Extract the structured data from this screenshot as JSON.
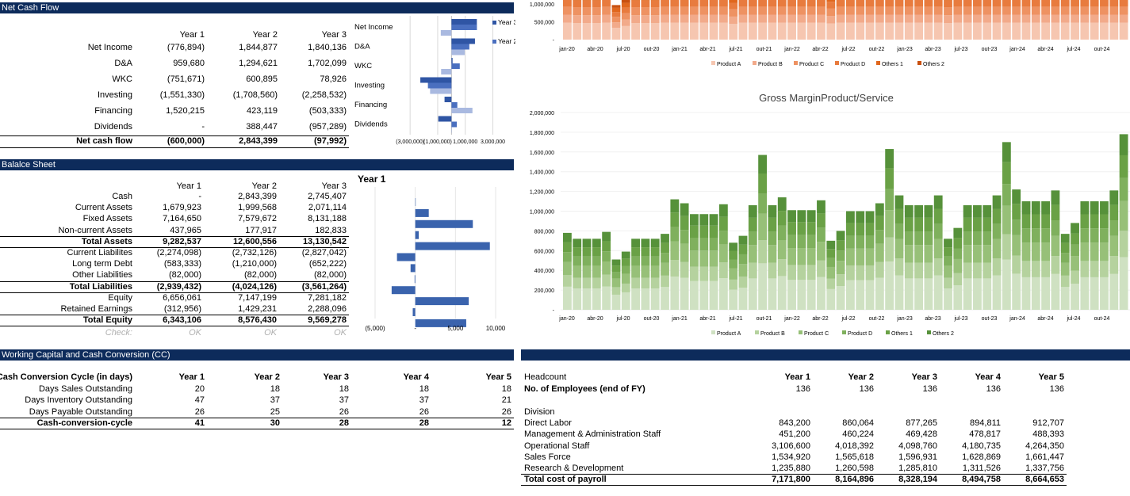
{
  "cashflow": {
    "header": "Net Cash Flow",
    "years": [
      "Year 1",
      "Year 2",
      "Year 3"
    ],
    "rows": [
      {
        "label": "Net Income",
        "vals": [
          "(776,894)",
          "1,844,877",
          "1,840,136"
        ]
      },
      {
        "label": "D&A",
        "vals": [
          "959,680",
          "1,294,621",
          "1,702,099"
        ]
      },
      {
        "label": "WKC",
        "vals": [
          "(751,671)",
          "600,895",
          "78,926"
        ]
      },
      {
        "label": "Investing",
        "vals": [
          "(1,551,330)",
          "(1,708,560)",
          "(2,258,532)"
        ]
      },
      {
        "label": "Financing",
        "vals": [
          "1,520,215",
          "423,119",
          "(503,333)"
        ]
      },
      {
        "label": "Dividends",
        "vals": [
          "-",
          "388,447",
          "(957,289)"
        ]
      }
    ],
    "total": {
      "label": "Net cash flow",
      "vals": [
        "(600,000)",
        "2,843,399",
        "(97,992)"
      ]
    }
  },
  "cf_chart": {
    "categories": [
      "Net Income",
      "D&A",
      "WKC",
      "Investing",
      "Financing",
      "Dividends"
    ],
    "legend": [
      "Year 3",
      "Year 2"
    ],
    "ticks": [
      "(3,000,000)",
      "(1,000,000)",
      "1,000,000",
      "3,000,000"
    ],
    "colors": {
      "y1": "#a9b9e0",
      "y2": "#4a6fbf",
      "y3": "#2f55a4"
    },
    "series": [
      {
        "name": "Year 1",
        "values": [
          -776894,
          959680,
          -751671,
          -1551330,
          1520215,
          0
        ]
      },
      {
        "name": "Year 2",
        "values": [
          1844877,
          1294621,
          600895,
          -1708560,
          423119,
          388447
        ]
      },
      {
        "name": "Year 3",
        "values": [
          1840136,
          1702099,
          78926,
          -2258532,
          -503333,
          -957289
        ]
      }
    ]
  },
  "balance": {
    "header": "Balalce Sheet",
    "years": [
      "Year 1",
      "Year 2",
      "Year 3"
    ],
    "rows": [
      {
        "label": "Cash",
        "vals": [
          "-",
          "2,843,399",
          "2,745,407"
        ],
        "bold": false
      },
      {
        "label": "Current Assets",
        "vals": [
          "1,679,923",
          "1,999,568",
          "2,071,114"
        ],
        "bold": false
      },
      {
        "label": "Fixed Assets",
        "vals": [
          "7,164,650",
          "7,579,672",
          "8,131,188"
        ],
        "bold": false
      },
      {
        "label": "Non-current Assets",
        "vals": [
          "437,965",
          "177,917",
          "182,833"
        ],
        "bold": false
      },
      {
        "label": "Total Assets",
        "vals": [
          "9,282,537",
          "12,600,556",
          "13,130,542"
        ],
        "bold": true
      },
      {
        "label": "Current Liabilites",
        "vals": [
          "(2,274,098)",
          "(2,732,126)",
          "(2,827,042)"
        ],
        "bold": false
      },
      {
        "label": "Long term Debt",
        "vals": [
          "(583,333)",
          "(1,210,000)",
          "(652,222)"
        ],
        "bold": false
      },
      {
        "label": "Other  Liabilities",
        "vals": [
          "(82,000)",
          "(82,000)",
          "(82,000)"
        ],
        "bold": false
      },
      {
        "label": "Total Liabilities",
        "vals": [
          "(2,939,432)",
          "(4,024,126)",
          "(3,561,264)"
        ],
        "bold": true
      },
      {
        "label": "Equity",
        "vals": [
          "6,656,061",
          "7,147,199",
          "7,281,182"
        ],
        "bold": false
      },
      {
        "label": "Retained Earnings",
        "vals": [
          "(312,956)",
          "1,429,231",
          "2,288,096"
        ],
        "bold": false
      },
      {
        "label": "Total Equity",
        "vals": [
          "6,343,106",
          "8,576,430",
          "9,569,278"
        ],
        "bold": true
      }
    ],
    "check": {
      "label": "Check:",
      "vals": [
        "OK",
        "OK",
        "OK"
      ]
    }
  },
  "bs_chart": {
    "title": "Year 1",
    "ticks": [
      "(5,000)",
      "-",
      "5,000",
      "10,000"
    ],
    "values": [
      0,
      1680,
      7165,
      438,
      9283,
      -2274,
      -583,
      -82,
      -2939,
      6656,
      -313,
      6343
    ]
  },
  "wc": {
    "header": "Working Capital and Cash Conversion (CC)",
    "title": "Cash Conversion Cycle (in days)",
    "years": [
      "Year 1",
      "Year 2",
      "Year 3",
      "Year 4",
      "Year 5"
    ],
    "rows": [
      {
        "label": "Days Sales Outstanding",
        "vals": [
          "20",
          "18",
          "18",
          "18",
          "18"
        ]
      },
      {
        "label": "Days Inventory Outstanding",
        "vals": [
          "47",
          "37",
          "37",
          "37",
          "21"
        ]
      },
      {
        "label": "Days Payable Outstanding",
        "vals": [
          "26",
          "25",
          "26",
          "26",
          "26"
        ]
      }
    ],
    "total": {
      "label": "Cash-conversion-cycle",
      "vals": [
        "41",
        "30",
        "28",
        "28",
        "12"
      ]
    }
  },
  "headcount": {
    "title": "Headcount",
    "years": [
      "Year 1",
      "Year 2",
      "Year 3",
      "Year 4",
      "Year 5"
    ],
    "employees": {
      "label": "No. of Employees (end of FY)",
      "vals": [
        "136",
        "136",
        "136",
        "136",
        "136"
      ]
    },
    "division": "Division",
    "rows": [
      {
        "label": "Direct Labor",
        "vals": [
          "843,200",
          "860,064",
          "877,265",
          "894,811",
          "912,707"
        ]
      },
      {
        "label": "Management & Administration Staff",
        "vals": [
          "451,200",
          "460,224",
          "469,428",
          "478,817",
          "488,393"
        ]
      },
      {
        "label": "Operational Staff",
        "vals": [
          "3,106,600",
          "4,018,392",
          "4,098,760",
          "4,180,735",
          "4,264,350"
        ]
      },
      {
        "label": "Sales Force",
        "vals": [
          "1,534,920",
          "1,565,618",
          "1,596,931",
          "1,628,869",
          "1,661,447"
        ]
      },
      {
        "label": "Research & Development",
        "vals": [
          "1,235,880",
          "1,260,598",
          "1,285,810",
          "1,311,526",
          "1,337,756"
        ]
      }
    ],
    "total": {
      "label": "Total cost of payroll",
      "vals": [
        "7,171,800",
        "8,164,896",
        "8,328,194",
        "8,494,758",
        "8,664,653"
      ]
    }
  },
  "chart_data": [
    {
      "type": "bar",
      "title": "",
      "y_ticks": [
        "1,000,000",
        "500,000",
        "-"
      ],
      "x_labels": [
        "jan-20",
        "abr-20",
        "jul-20",
        "out-20",
        "jan-21",
        "abr-21",
        "jul-21",
        "out-21",
        "jan-22",
        "abr-22",
        "jul-22",
        "out-22",
        "jan-23",
        "abr-23",
        "jul-23",
        "out-23",
        "jan-24",
        "abr-24",
        "jul-24",
        "out-24"
      ],
      "series": [
        {
          "name": "Product A",
          "color": "#f6c6b0"
        },
        {
          "name": "Product B",
          "color": "#f2aa8a"
        },
        {
          "name": "Product C",
          "color": "#ee9262"
        },
        {
          "name": "Product D",
          "color": "#e87b3e"
        },
        {
          "name": "Others 1",
          "color": "#e0671d"
        },
        {
          "name": "Others 2",
          "color": "#c9500f"
        }
      ]
    },
    {
      "type": "bar",
      "title": "Gross MarginProduct/Service",
      "stacked": true,
      "ylim": [
        0,
        2000000
      ],
      "y_ticks": [
        "2,000,000",
        "1,800,000",
        "1,600,000",
        "1,400,000",
        "1,200,000",
        "1,000,000",
        "800,000",
        "600,000",
        "400,000",
        "200,000",
        "-"
      ],
      "x_labels": [
        "jan-20",
        "abr-20",
        "jul-20",
        "out-20",
        "jan-21",
        "abr-21",
        "jul-21",
        "out-21",
        "jan-22",
        "abr-22",
        "jul-22",
        "out-22",
        "jan-23",
        "abr-23",
        "jul-23",
        "out-23",
        "jan-24",
        "abr-24",
        "jul-24",
        "out-24"
      ],
      "totals": [
        780000,
        720000,
        720000,
        720000,
        790000,
        510000,
        590000,
        720000,
        720000,
        720000,
        770000,
        1120000,
        1080000,
        970000,
        970000,
        970000,
        1070000,
        680000,
        750000,
        1060000,
        1570000,
        1060000,
        1140000,
        1010000,
        1010000,
        1010000,
        1110000,
        700000,
        800000,
        1000000,
        1000000,
        1000000,
        1080000,
        1630000,
        1160000,
        1060000,
        1060000,
        1060000,
        1160000,
        720000,
        830000,
        1060000,
        1060000,
        1060000,
        1160000,
        1700000,
        1220000,
        1100000,
        1100000,
        1100000,
        1210000,
        770000,
        880000,
        1100000,
        1100000,
        1100000,
        1210000,
        1780000
      ],
      "series": [
        {
          "name": "Product A",
          "color": "#cfe1c2"
        },
        {
          "name": "Product B",
          "color": "#b5d29e"
        },
        {
          "name": "Product C",
          "color": "#97c078"
        },
        {
          "name": "Product D",
          "color": "#7fb05d"
        },
        {
          "name": "Others 1",
          "color": "#6aa146"
        },
        {
          "name": "Others 2",
          "color": "#56913a"
        }
      ]
    }
  ]
}
